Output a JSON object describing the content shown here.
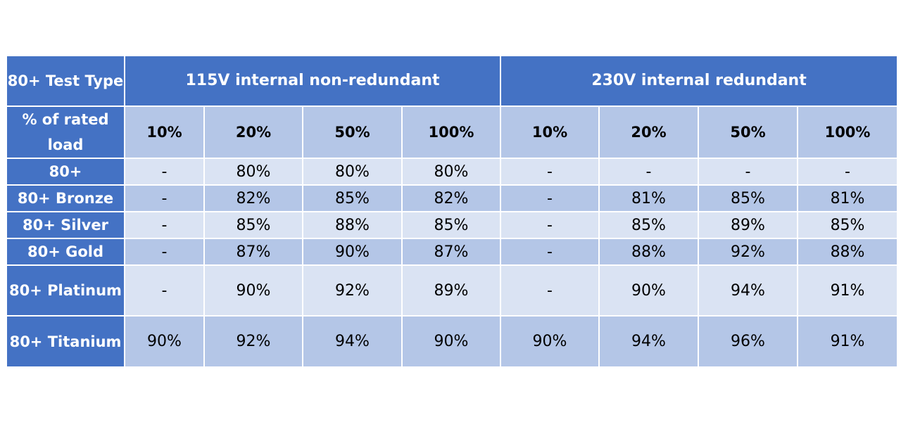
{
  "table": {
    "header": {
      "corner": "80+ Test Type",
      "groups": [
        "115V internal non-redundant",
        "230V internal redundant"
      ]
    },
    "subheader": {
      "label": "% of rated load",
      "loads": [
        "10%",
        "20%",
        "50%",
        "100%",
        "10%",
        "20%",
        "50%",
        "100%"
      ]
    },
    "rows": [
      {
        "name": "80+",
        "values": [
          "-",
          "80%",
          "80%",
          "80%",
          "-",
          "-",
          "-",
          "-"
        ]
      },
      {
        "name": "80+ Bronze",
        "values": [
          "-",
          "82%",
          "85%",
          "82%",
          "-",
          "81%",
          "85%",
          "81%"
        ]
      },
      {
        "name": "80+ Silver",
        "values": [
          "-",
          "85%",
          "88%",
          "85%",
          "-",
          "85%",
          "89%",
          "85%"
        ]
      },
      {
        "name": "80+ Gold",
        "values": [
          "-",
          "87%",
          "90%",
          "87%",
          "-",
          "88%",
          "92%",
          "88%"
        ]
      },
      {
        "name": "80+ Platinum",
        "values": [
          "-",
          "90%",
          "92%",
          "89%",
          "-",
          "90%",
          "94%",
          "91%"
        ]
      },
      {
        "name": "80+ Titanium",
        "values": [
          "90%",
          "92%",
          "94%",
          "90%",
          "90%",
          "94%",
          "96%",
          "91%"
        ]
      }
    ]
  }
}
